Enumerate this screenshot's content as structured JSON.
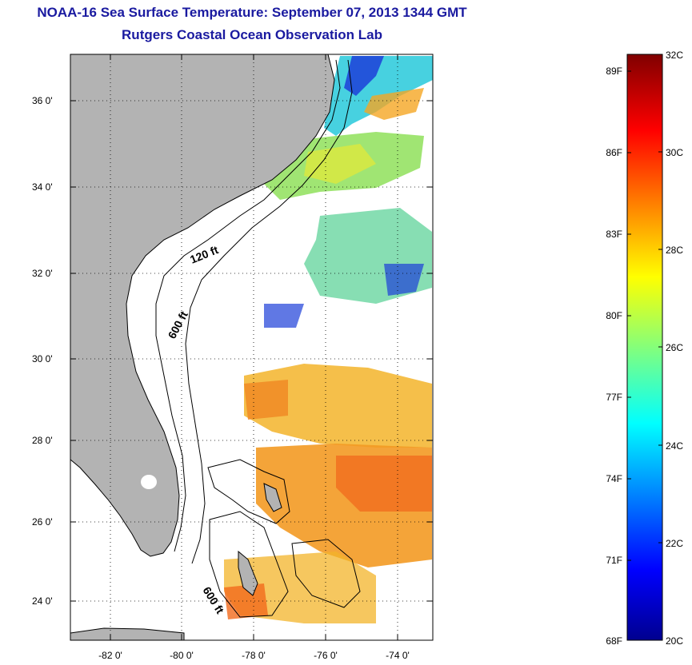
{
  "title": {
    "line1": "NOAA-16 Sea Surface Temperature:  September 07, 2013 1344 GMT",
    "line2": "Rutgers Coastal Ocean Observation Lab"
  },
  "map": {
    "lat_labels": [
      "36 0'",
      "34 0'",
      "32 0'",
      "30 0'",
      "28 0'",
      "26 0'",
      "24 0'"
    ],
    "lon_labels": [
      "-82 0'",
      "-80 0'",
      "-78 0'",
      "-76 0'",
      "-74 0'"
    ],
    "contour_labels": [
      "120 ft",
      "600 ft",
      "600 ft"
    ],
    "colors": {
      "land": "#b3b3b3",
      "water": "#ffffff"
    }
  },
  "colorbar": {
    "fahrenheit_labels": [
      "89F",
      "86F",
      "83F",
      "80F",
      "77F",
      "74F",
      "71F",
      "68F"
    ],
    "celsius_labels": [
      "32C",
      "30C",
      "28C",
      "26C",
      "24C",
      "22C",
      "20C"
    ],
    "range_c": [
      20,
      32
    ]
  }
}
